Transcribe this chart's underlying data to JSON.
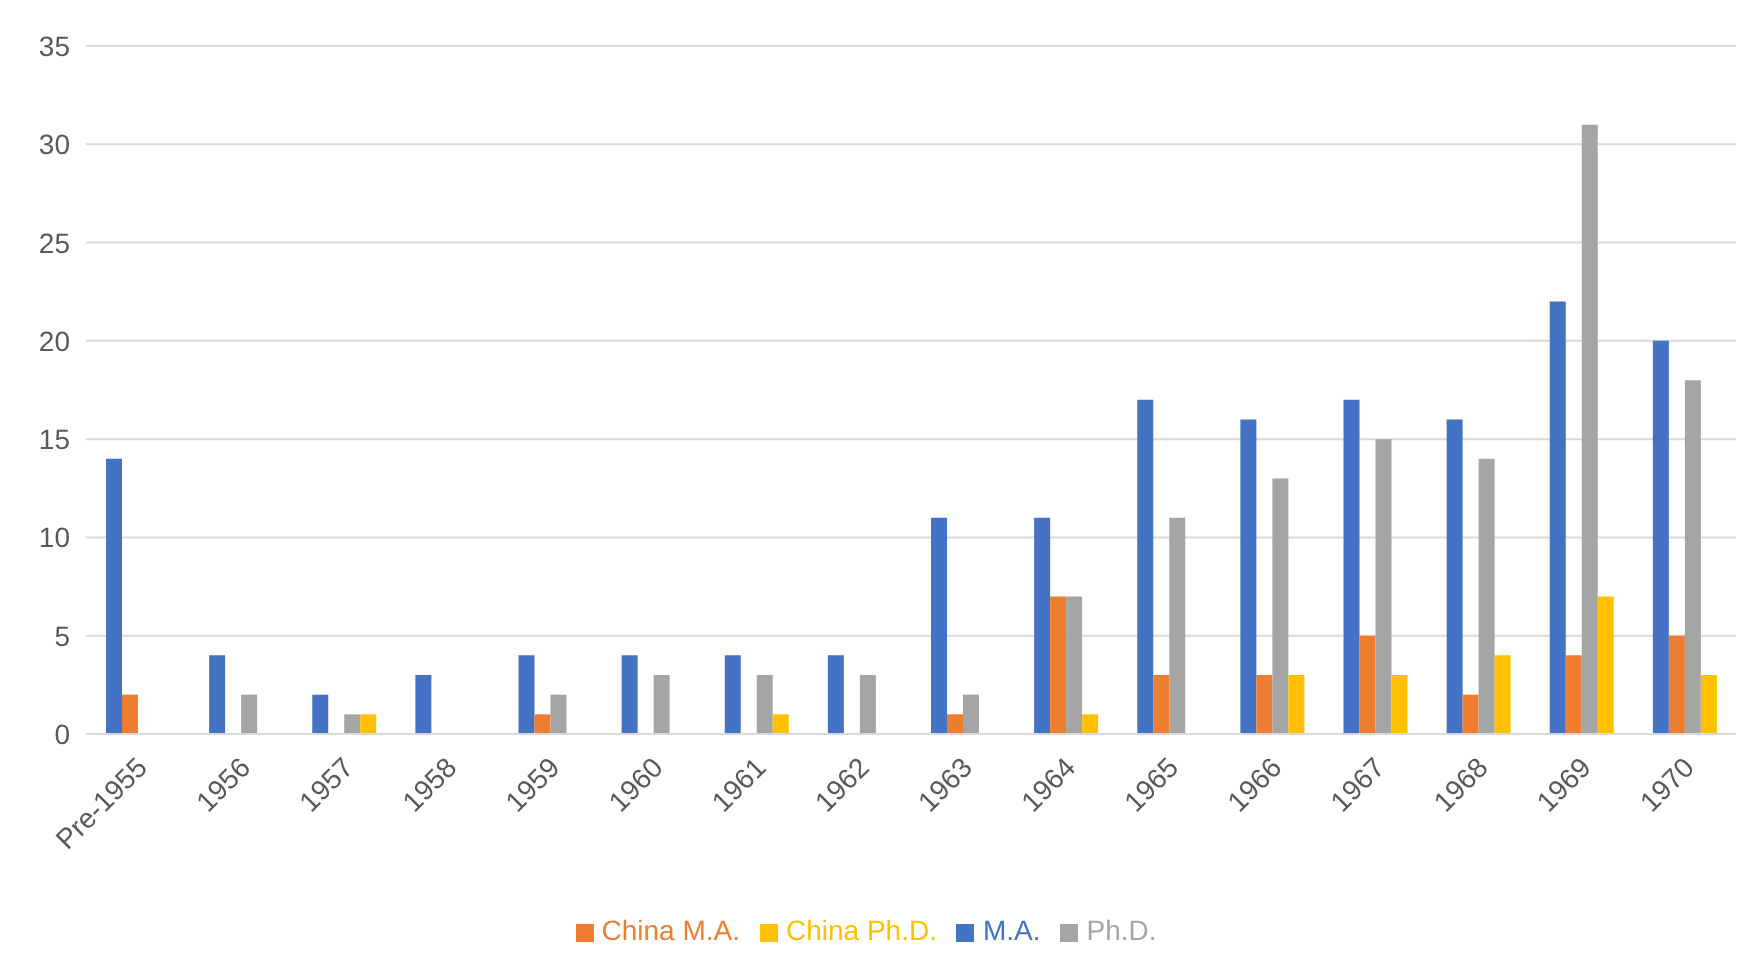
{
  "chart_data": {
    "type": "bar",
    "categories": [
      "Pre-1955",
      "1956",
      "1957",
      "1958",
      "1959",
      "1960",
      "1961",
      "1962",
      "1963",
      "1964",
      "1965",
      "1966",
      "1967",
      "1968",
      "1969",
      "1970"
    ],
    "series": [
      {
        "name": "M.A.",
        "color": "#4472c4",
        "values": [
          14,
          4,
          2,
          3,
          4,
          4,
          4,
          4,
          11,
          11,
          17,
          16,
          17,
          16,
          22,
          20
        ]
      },
      {
        "name": "China M.A.",
        "color": "#ed7d31",
        "values": [
          2,
          0,
          0,
          0,
          1,
          0,
          0,
          0,
          1,
          7,
          3,
          3,
          5,
          2,
          4,
          5
        ]
      },
      {
        "name": "Ph.D.",
        "color": "#a5a5a5",
        "values": [
          0,
          2,
          1,
          0,
          2,
          3,
          3,
          3,
          2,
          7,
          11,
          13,
          15,
          14,
          31,
          18
        ]
      },
      {
        "name": "China Ph.D.",
        "color": "#ffc000",
        "values": [
          0,
          0,
          1,
          0,
          0,
          0,
          1,
          0,
          0,
          1,
          0,
          3,
          3,
          4,
          7,
          3
        ]
      }
    ],
    "ylim": [
      0,
      35
    ],
    "yticks": [
      0,
      5,
      10,
      15,
      20,
      25,
      30,
      35
    ],
    "grid": "y",
    "legend": "bottom"
  }
}
